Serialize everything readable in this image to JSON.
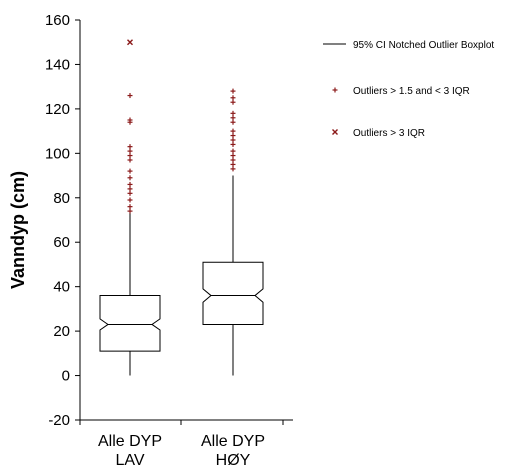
{
  "chart_data": {
    "type": "box",
    "ylabel": "Vanndyp (cm)",
    "xlabel": "",
    "ylim": [
      -20,
      160
    ],
    "yticks": [
      -20,
      0,
      20,
      40,
      60,
      80,
      100,
      120,
      140,
      160
    ],
    "categories": [
      {
        "line1": "Alle DYP",
        "line2": "LAV"
      },
      {
        "line1": "Alle DYP",
        "line2": "HØY"
      }
    ],
    "boxes": [
      {
        "whisker_low": 0,
        "q1": 11,
        "median": 23,
        "q3": 36,
        "whisker_high": 73,
        "notch_low": 20.5,
        "notch_high": 25.5,
        "mild_outliers": [
          74,
          76,
          79,
          82,
          84,
          86,
          89,
          92,
          97,
          99,
          101,
          103,
          114,
          115,
          126
        ],
        "extreme_outliers": [
          150
        ]
      },
      {
        "whisker_low": 0,
        "q1": 23,
        "median": 36,
        "q3": 51,
        "whisker_high": 90,
        "notch_low": 33,
        "notch_high": 39,
        "mild_outliers": [
          93,
          95,
          97,
          99,
          101,
          104,
          106,
          108,
          110,
          114,
          116,
          118,
          123,
          125,
          128
        ],
        "extreme_outliers": []
      }
    ],
    "legend": {
      "position": "right",
      "entries": [
        {
          "symbol": "line",
          "label": "95% CI Notched Outlier Boxplot"
        },
        {
          "symbol": "plus",
          "label": "Outliers > 1.5 and < 3 IQR"
        },
        {
          "symbol": "cross",
          "label": "Outliers > 3 IQR"
        }
      ]
    },
    "outlier_color": "#8b1a1a",
    "grid": false
  }
}
